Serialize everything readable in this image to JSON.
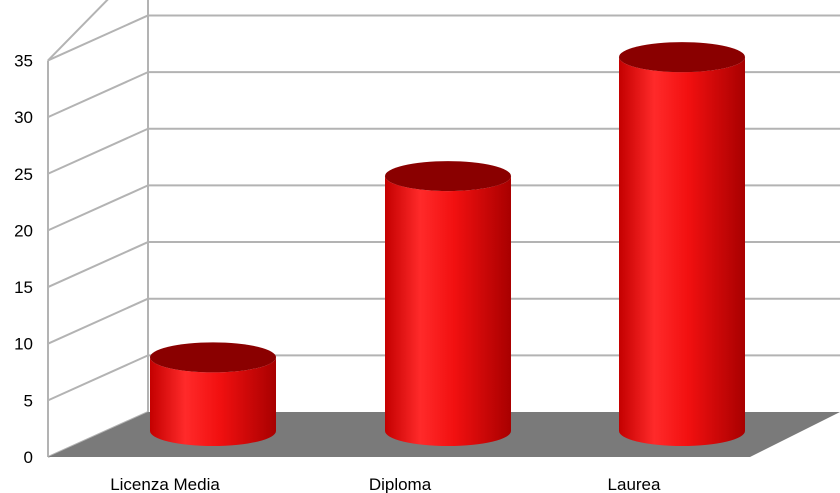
{
  "chart_data": {
    "type": "bar",
    "style": "3d-cylinder",
    "categories": [
      "Licenza Media",
      "Diploma",
      "Laurea"
    ],
    "values": [
      6.5,
      22.5,
      33
    ],
    "ylim": [
      0,
      35
    ],
    "yticks": [
      "0",
      "5",
      "10",
      "15",
      "20",
      "25",
      "30",
      "35"
    ],
    "title": "",
    "xlabel": "",
    "ylabel": "",
    "grid": true,
    "legend": "none",
    "colors": {
      "bar": "#ee1111",
      "bar_dark": "#8a0000",
      "floor": "#7a7a7a",
      "grid": "#b3b3b3"
    }
  }
}
